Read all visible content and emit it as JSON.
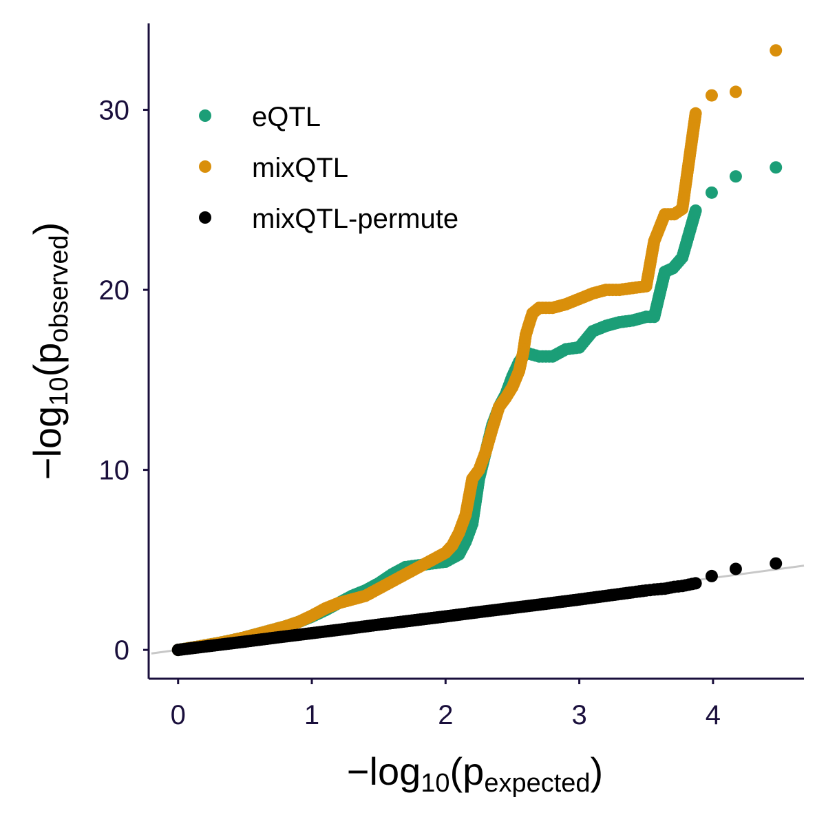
{
  "chart_data": {
    "type": "scatter",
    "title": "",
    "xlabel": {
      "prefix": "−log",
      "base": "10",
      "open": "(p",
      "sub": "expected",
      "close": ")"
    },
    "ylabel": {
      "prefix": "−log",
      "base": "10",
      "open": "(p",
      "sub": "observed",
      "close": ")"
    },
    "xlim": [
      -0.22,
      4.68
    ],
    "ylim": [
      -1.6,
      34.8
    ],
    "xticks": [
      0,
      1,
      2,
      3,
      4
    ],
    "xtick_labels": [
      "0",
      "1",
      "2",
      "3",
      "4"
    ],
    "yticks": [
      0,
      10,
      20,
      30
    ],
    "ytick_labels": [
      "0",
      "10",
      "20",
      "30"
    ],
    "grid": false,
    "legend_position": "top-left",
    "reference_line": {
      "slope": 1,
      "intercept": 0,
      "color": "#c8c8c8"
    },
    "series": [
      {
        "name": "eQTL",
        "color": "#1b9e77",
        "x": [
          0,
          0.1,
          0.2,
          0.3,
          0.4,
          0.5,
          0.6,
          0.7,
          0.8,
          0.9,
          1.0,
          1.1,
          1.2,
          1.3,
          1.4,
          1.5,
          1.6,
          1.7,
          1.8,
          1.9,
          2.0,
          2.1,
          2.15,
          2.2,
          2.25,
          2.3,
          2.35,
          2.4,
          2.45,
          2.5,
          2.55,
          2.6,
          2.65,
          2.7,
          2.8,
          2.9,
          3.0,
          3.1,
          3.2,
          3.3,
          3.4,
          3.5,
          3.56,
          3.64,
          3.7,
          3.77,
          3.87,
          3.99,
          4.17,
          4.47
        ],
        "y": [
          0,
          0.12,
          0.25,
          0.38,
          0.53,
          0.7,
          0.9,
          1.1,
          1.3,
          1.55,
          1.85,
          2.2,
          2.6,
          3.0,
          3.3,
          3.7,
          4.2,
          4.6,
          4.7,
          4.8,
          4.9,
          5.3,
          6.0,
          7.0,
          9.5,
          11.0,
          12.5,
          13.5,
          14.2,
          15.2,
          16.0,
          16.5,
          16.4,
          16.3,
          16.3,
          16.7,
          16.8,
          17.7,
          18.0,
          18.2,
          18.3,
          18.5,
          18.5,
          21.0,
          21.2,
          21.8,
          24.4,
          25.4,
          26.3,
          26.8
        ]
      },
      {
        "name": "mixQTL",
        "color": "#d98f0b",
        "x": [
          0,
          0.1,
          0.2,
          0.3,
          0.4,
          0.5,
          0.6,
          0.7,
          0.8,
          0.9,
          1.0,
          1.1,
          1.2,
          1.3,
          1.4,
          1.5,
          1.6,
          1.7,
          1.8,
          1.9,
          2.0,
          2.05,
          2.1,
          2.15,
          2.2,
          2.25,
          2.3,
          2.35,
          2.4,
          2.45,
          2.5,
          2.55,
          2.58,
          2.6,
          2.62,
          2.65,
          2.7,
          2.8,
          2.9,
          3.0,
          3.1,
          3.2,
          3.3,
          3.4,
          3.5,
          3.56,
          3.64,
          3.71,
          3.77,
          3.87,
          3.99,
          4.17,
          4.47
        ],
        "y": [
          0,
          0.12,
          0.25,
          0.38,
          0.53,
          0.7,
          0.9,
          1.1,
          1.3,
          1.55,
          1.9,
          2.3,
          2.6,
          2.8,
          3.0,
          3.4,
          3.8,
          4.2,
          4.6,
          5.0,
          5.4,
          5.8,
          6.5,
          7.5,
          9.5,
          10.0,
          11.0,
          12.3,
          13.5,
          14.0,
          14.6,
          15.5,
          16.5,
          17.5,
          18.0,
          18.7,
          19.0,
          19.0,
          19.2,
          19.5,
          19.8,
          20.0,
          20.0,
          20.1,
          20.2,
          22.7,
          24.2,
          24.2,
          24.5,
          29.8,
          30.8,
          31.0,
          33.3
        ]
      },
      {
        "name": "mixQTL-permute",
        "color": "#000000",
        "x": [
          0,
          0.25,
          0.5,
          0.75,
          1.0,
          1.25,
          1.5,
          1.75,
          2.0,
          2.25,
          2.5,
          2.75,
          3.0,
          3.2,
          3.4,
          3.5,
          3.56,
          3.64,
          3.71,
          3.77,
          3.87,
          3.99,
          4.17,
          4.47
        ],
        "y": [
          0,
          0.23,
          0.46,
          0.7,
          0.93,
          1.16,
          1.4,
          1.63,
          1.86,
          2.1,
          2.33,
          2.56,
          2.8,
          3.0,
          3.2,
          3.3,
          3.35,
          3.4,
          3.5,
          3.55,
          3.7,
          4.1,
          4.5,
          4.8
        ]
      }
    ]
  }
}
